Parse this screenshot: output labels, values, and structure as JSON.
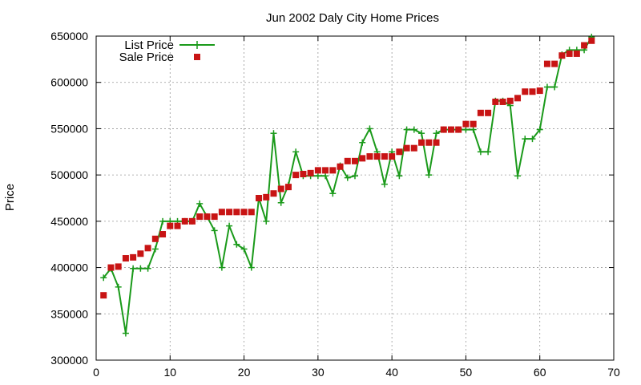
{
  "chart_data": {
    "type": "line",
    "title": "Jun 2002 Daly City Home Prices",
    "xlabel": "",
    "ylabel": "Price",
    "xlim": [
      0,
      70
    ],
    "ylim": [
      300000,
      650000
    ],
    "x_ticks": [
      0,
      10,
      20,
      30,
      40,
      50,
      60,
      70
    ],
    "y_ticks": [
      300000,
      350000,
      400000,
      450000,
      500000,
      550000,
      600000,
      650000
    ],
    "grid": true,
    "legend_position": "top-left",
    "series": [
      {
        "name": "List Price",
        "style": "line+cross",
        "color": "#1a9a1a",
        "x": [
          1,
          2,
          3,
          4,
          5,
          6,
          7,
          8,
          9,
          10,
          11,
          12,
          13,
          14,
          15,
          16,
          17,
          18,
          19,
          20,
          21,
          22,
          23,
          24,
          25,
          26,
          27,
          28,
          29,
          30,
          31,
          32,
          33,
          34,
          35,
          36,
          37,
          38,
          39,
          40,
          41,
          42,
          43,
          44,
          45,
          46,
          47,
          48,
          49,
          50,
          51,
          52,
          53,
          54,
          55,
          56,
          57,
          58,
          59,
          60,
          61,
          62,
          63,
          64,
          65,
          66,
          67
        ],
        "values": [
          389000,
          399000,
          379000,
          329000,
          399000,
          399000,
          399000,
          420000,
          450000,
          450000,
          450000,
          450000,
          450000,
          469000,
          455000,
          440000,
          400000,
          445000,
          425000,
          420000,
          400000,
          475000,
          450000,
          545000,
          470000,
          489000,
          525000,
          499000,
          499000,
          499000,
          499000,
          480000,
          510000,
          497000,
          499000,
          535000,
          550000,
          525000,
          490000,
          525000,
          499000,
          549000,
          549000,
          545000,
          500000,
          545000,
          549000,
          549000,
          549000,
          549000,
          549000,
          525000,
          525000,
          580000,
          580000,
          575000,
          499000,
          539000,
          539000,
          549000,
          595000,
          595000,
          630000,
          635000,
          635000,
          635000,
          649000
        ]
      },
      {
        "name": "Sale Price",
        "style": "points-square",
        "color": "#c81414",
        "x": [
          1,
          2,
          3,
          4,
          5,
          6,
          7,
          8,
          9,
          10,
          11,
          12,
          13,
          14,
          15,
          16,
          17,
          18,
          19,
          20,
          21,
          22,
          23,
          24,
          25,
          26,
          27,
          28,
          29,
          30,
          31,
          32,
          33,
          34,
          35,
          36,
          37,
          38,
          39,
          40,
          41,
          42,
          43,
          44,
          45,
          46,
          47,
          48,
          49,
          50,
          51,
          52,
          53,
          54,
          55,
          56,
          57,
          58,
          59,
          60,
          61,
          62,
          63,
          64,
          65,
          66,
          67
        ],
        "values": [
          370000,
          400000,
          401000,
          410000,
          411000,
          415000,
          421000,
          431000,
          436000,
          445000,
          445000,
          450000,
          450000,
          455000,
          455000,
          455000,
          460000,
          460000,
          460000,
          460000,
          460000,
          475000,
          476000,
          480000,
          485000,
          487000,
          500000,
          501000,
          502000,
          505000,
          505000,
          505000,
          509000,
          515000,
          515000,
          518000,
          520000,
          520000,
          520000,
          520000,
          525000,
          529000,
          529000,
          535000,
          535000,
          535000,
          549000,
          549000,
          549000,
          555000,
          555000,
          567000,
          567000,
          579000,
          579000,
          580000,
          583000,
          590000,
          590000,
          591000,
          620000,
          620000,
          629000,
          631000,
          631000,
          640000,
          645000
        ]
      }
    ]
  }
}
